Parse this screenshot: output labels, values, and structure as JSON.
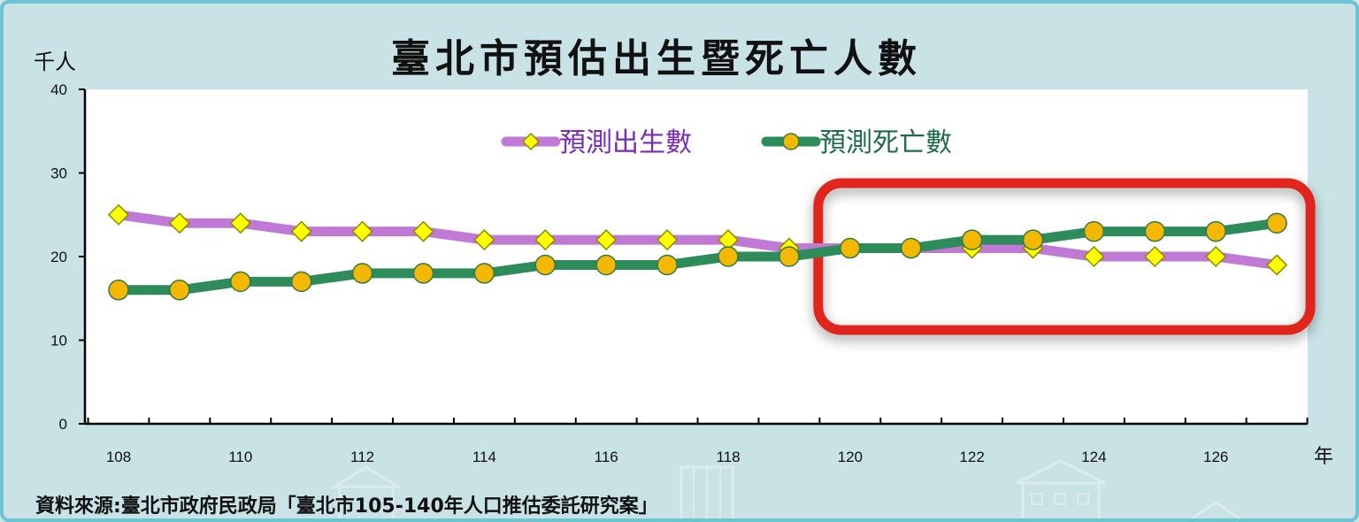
{
  "header": {
    "title": "臺北市預估出生暨死亡人數",
    "y_unit": "千人",
    "x_unit": "年"
  },
  "footer": {
    "source": "資料來源:臺北市政府民政局「臺北市105-140年人口推估委託研究案」"
  },
  "colors": {
    "births_line": "#c07ad6",
    "births_marker": "#ffff00",
    "deaths_line": "#2e8b5a",
    "deaths_marker": "#f5b800",
    "legend_births_text": "#7a2bb0",
    "legend_deaths_text": "#1f6b48",
    "highlight_box": "#e0281e"
  },
  "chart_data": {
    "type": "line",
    "x": [
      108,
      109,
      110,
      111,
      112,
      113,
      114,
      115,
      116,
      117,
      118,
      119,
      120,
      121,
      122,
      123,
      124,
      125,
      126,
      127
    ],
    "x_tick_labels": [
      "108",
      "110",
      "112",
      "114",
      "116",
      "118",
      "120",
      "122",
      "124",
      "126"
    ],
    "y_tick_labels": [
      "0",
      "10",
      "20",
      "30",
      "40"
    ],
    "ylim": [
      0,
      40
    ],
    "xlim": [
      107.5,
      127.5
    ],
    "legend_position": "top-center",
    "grid": false,
    "series": [
      {
        "name": "預測出生數",
        "marker": "diamond",
        "values": [
          25,
          24,
          24,
          23,
          23,
          23,
          22,
          22,
          22,
          22,
          22,
          21,
          21,
          21,
          21,
          21,
          20,
          20,
          20,
          19
        ]
      },
      {
        "name": "預測死亡數",
        "marker": "circle",
        "values": [
          16,
          16,
          17,
          17,
          18,
          18,
          18,
          19,
          19,
          19,
          20,
          20,
          21,
          21,
          22,
          22,
          23,
          23,
          23,
          24
        ]
      }
    ],
    "highlight": {
      "x_range": [
        120,
        127
      ],
      "style": "rounded rectangle outline"
    }
  }
}
